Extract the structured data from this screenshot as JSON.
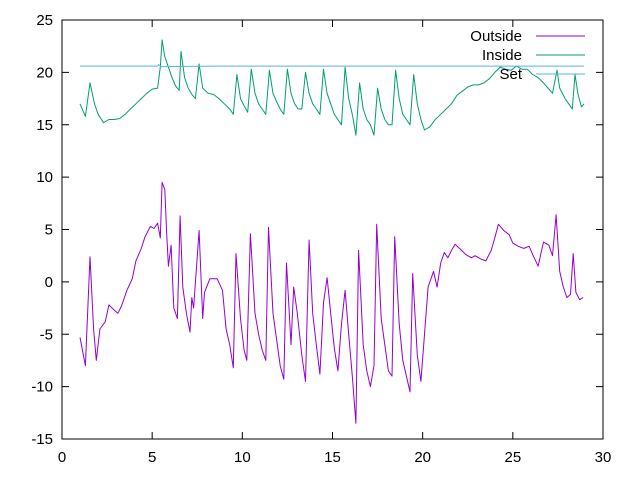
{
  "chart_data": {
    "type": "line",
    "title": "",
    "xlabel": "",
    "ylabel": "",
    "xlim": [
      0,
      30
    ],
    "ylim": [
      -15,
      25
    ],
    "xticks": [
      0,
      5,
      10,
      15,
      20,
      25,
      30
    ],
    "yticks": [
      -15,
      -10,
      -5,
      0,
      5,
      10,
      15,
      20,
      25
    ],
    "grid": false,
    "legend_position": "top-right",
    "series": [
      {
        "name": "Outside",
        "color": "#9400d3",
        "points": [
          [
            1.0,
            -5.3
          ],
          [
            1.3,
            -8.0
          ],
          [
            1.55,
            2.4
          ],
          [
            1.75,
            -4.5
          ],
          [
            1.9,
            -7.5
          ],
          [
            2.1,
            -4.5
          ],
          [
            2.4,
            -3.8
          ],
          [
            2.6,
            -2.2
          ],
          [
            2.9,
            -2.7
          ],
          [
            3.1,
            -3.0
          ],
          [
            3.3,
            -2.3
          ],
          [
            3.6,
            -0.8
          ],
          [
            3.9,
            0.3
          ],
          [
            4.1,
            2.0
          ],
          [
            4.4,
            3.2
          ],
          [
            4.6,
            4.3
          ],
          [
            4.9,
            5.3
          ],
          [
            5.1,
            5.1
          ],
          [
            5.3,
            5.6
          ],
          [
            5.45,
            4.2
          ],
          [
            5.55,
            9.5
          ],
          [
            5.7,
            8.8
          ],
          [
            5.8,
            4.8
          ],
          [
            5.9,
            1.5
          ],
          [
            6.05,
            3.5
          ],
          [
            6.2,
            -2.5
          ],
          [
            6.4,
            -3.5
          ],
          [
            6.55,
            6.3
          ],
          [
            6.7,
            -0.5
          ],
          [
            6.9,
            -3.0
          ],
          [
            7.1,
            -4.8
          ],
          [
            7.2,
            -1.5
          ],
          [
            7.3,
            -2.5
          ],
          [
            7.6,
            4.9
          ],
          [
            7.8,
            -3.5
          ],
          [
            7.9,
            -1.0
          ],
          [
            8.2,
            0.3
          ],
          [
            8.6,
            0.3
          ],
          [
            8.9,
            -0.8
          ],
          [
            9.1,
            -4.5
          ],
          [
            9.3,
            -6.0
          ],
          [
            9.5,
            -8.2
          ],
          [
            9.65,
            2.7
          ],
          [
            9.9,
            -3.5
          ],
          [
            10.1,
            -6.5
          ],
          [
            10.25,
            -7.5
          ],
          [
            10.45,
            4.6
          ],
          [
            10.7,
            -3.0
          ],
          [
            10.9,
            -5.0
          ],
          [
            11.1,
            -6.5
          ],
          [
            11.3,
            -7.5
          ],
          [
            11.45,
            5.2
          ],
          [
            11.7,
            -3.0
          ],
          [
            11.9,
            -5.5
          ],
          [
            12.1,
            -8.0
          ],
          [
            12.3,
            -9.3
          ],
          [
            12.45,
            1.8
          ],
          [
            12.7,
            -6.0
          ],
          [
            12.85,
            -0.5
          ],
          [
            13.05,
            -3.0
          ],
          [
            13.3,
            -7.0
          ],
          [
            13.5,
            -9.5
          ],
          [
            13.7,
            4.0
          ],
          [
            13.9,
            -3.0
          ],
          [
            14.1,
            -6.0
          ],
          [
            14.3,
            -8.8
          ],
          [
            14.5,
            -2.0
          ],
          [
            14.7,
            0.4
          ],
          [
            14.9,
            -3.0
          ],
          [
            15.1,
            -6.3
          ],
          [
            15.3,
            -8.5
          ],
          [
            15.5,
            -4.0
          ],
          [
            15.7,
            -0.8
          ],
          [
            15.9,
            -5.0
          ],
          [
            16.1,
            -9.0
          ],
          [
            16.3,
            -13.5
          ],
          [
            16.45,
            3.0
          ],
          [
            16.7,
            -6.0
          ],
          [
            16.9,
            -8.5
          ],
          [
            17.1,
            -10.0
          ],
          [
            17.3,
            -8.0
          ],
          [
            17.45,
            5.5
          ],
          [
            17.7,
            -3.5
          ],
          [
            17.9,
            -6.0
          ],
          [
            18.1,
            -8.5
          ],
          [
            18.3,
            -9.0
          ],
          [
            18.45,
            4.3
          ],
          [
            18.7,
            -4.0
          ],
          [
            18.9,
            -7.5
          ],
          [
            19.1,
            -9.0
          ],
          [
            19.3,
            -10.5
          ],
          [
            19.45,
            0.8
          ],
          [
            19.7,
            -7.0
          ],
          [
            19.9,
            -9.5
          ],
          [
            20.1,
            -5.0
          ],
          [
            20.3,
            -0.5
          ],
          [
            20.6,
            1.0
          ],
          [
            20.8,
            -0.5
          ],
          [
            21.0,
            1.8
          ],
          [
            21.2,
            2.8
          ],
          [
            21.4,
            2.3
          ],
          [
            21.6,
            3.0
          ],
          [
            21.8,
            3.6
          ],
          [
            22.1,
            3.1
          ],
          [
            22.4,
            2.6
          ],
          [
            22.7,
            2.3
          ],
          [
            22.9,
            2.5
          ],
          [
            23.2,
            2.2
          ],
          [
            23.5,
            2.0
          ],
          [
            23.8,
            3.0
          ],
          [
            24.0,
            4.2
          ],
          [
            24.2,
            5.5
          ],
          [
            24.5,
            4.9
          ],
          [
            24.8,
            4.5
          ],
          [
            25.0,
            3.7
          ],
          [
            25.3,
            3.4
          ],
          [
            25.6,
            3.2
          ],
          [
            25.9,
            3.4
          ],
          [
            26.1,
            2.6
          ],
          [
            26.4,
            1.5
          ],
          [
            26.7,
            3.8
          ],
          [
            27.0,
            3.5
          ],
          [
            27.2,
            2.5
          ],
          [
            27.4,
            6.4
          ],
          [
            27.6,
            1.0
          ],
          [
            27.8,
            -0.5
          ],
          [
            28.0,
            -1.5
          ],
          [
            28.2,
            -1.2
          ],
          [
            28.35,
            2.7
          ],
          [
            28.5,
            -1.0
          ],
          [
            28.7,
            -1.7
          ],
          [
            28.9,
            -1.5
          ]
        ]
      },
      {
        "name": "Inside",
        "color": "#009e73",
        "points": [
          [
            1.0,
            17.0
          ],
          [
            1.3,
            15.8
          ],
          [
            1.55,
            19.0
          ],
          [
            1.8,
            17.0
          ],
          [
            2.0,
            16.0
          ],
          [
            2.3,
            15.2
          ],
          [
            2.6,
            15.5
          ],
          [
            2.9,
            15.5
          ],
          [
            3.2,
            15.6
          ],
          [
            3.5,
            16.0
          ],
          [
            3.8,
            16.5
          ],
          [
            4.1,
            17.0
          ],
          [
            4.4,
            17.5
          ],
          [
            4.7,
            18.0
          ],
          [
            5.0,
            18.4
          ],
          [
            5.3,
            18.5
          ],
          [
            5.45,
            20.5
          ],
          [
            5.55,
            23.1
          ],
          [
            5.7,
            21.5
          ],
          [
            5.9,
            20.5
          ],
          [
            6.1,
            19.5
          ],
          [
            6.3,
            18.7
          ],
          [
            6.5,
            18.3
          ],
          [
            6.6,
            22.0
          ],
          [
            6.8,
            19.5
          ],
          [
            7.0,
            18.5
          ],
          [
            7.2,
            17.9
          ],
          [
            7.4,
            17.5
          ],
          [
            7.6,
            20.8
          ],
          [
            7.8,
            18.5
          ],
          [
            8.1,
            18.0
          ],
          [
            8.4,
            17.9
          ],
          [
            8.7,
            17.5
          ],
          [
            9.0,
            17.0
          ],
          [
            9.3,
            16.5
          ],
          [
            9.5,
            16.0
          ],
          [
            9.7,
            19.8
          ],
          [
            9.9,
            17.5
          ],
          [
            10.1,
            16.8
          ],
          [
            10.3,
            16.2
          ],
          [
            10.5,
            20.3
          ],
          [
            10.7,
            18.0
          ],
          [
            10.9,
            17.0
          ],
          [
            11.1,
            16.5
          ],
          [
            11.3,
            16.0
          ],
          [
            11.5,
            20.2
          ],
          [
            11.7,
            18.0
          ],
          [
            11.9,
            17.2
          ],
          [
            12.1,
            16.5
          ],
          [
            12.3,
            16.0
          ],
          [
            12.5,
            20.3
          ],
          [
            12.7,
            18.0
          ],
          [
            12.9,
            17.0
          ],
          [
            13.1,
            16.5
          ],
          [
            13.3,
            16.5
          ],
          [
            13.5,
            20.0
          ],
          [
            13.7,
            18.0
          ],
          [
            13.9,
            17.0
          ],
          [
            14.1,
            16.5
          ],
          [
            14.3,
            16.0
          ],
          [
            14.5,
            20.3
          ],
          [
            14.7,
            18.0
          ],
          [
            14.9,
            17.0
          ],
          [
            15.1,
            16.0
          ],
          [
            15.3,
            15.5
          ],
          [
            15.5,
            15.0
          ],
          [
            15.7,
            20.5
          ],
          [
            15.9,
            17.5
          ],
          [
            16.1,
            16.0
          ],
          [
            16.3,
            14.0
          ],
          [
            16.5,
            19.0
          ],
          [
            16.7,
            16.5
          ],
          [
            16.9,
            15.5
          ],
          [
            17.1,
            15.0
          ],
          [
            17.3,
            14.0
          ],
          [
            17.5,
            18.5
          ],
          [
            17.7,
            16.5
          ],
          [
            17.9,
            15.5
          ],
          [
            18.1,
            15.0
          ],
          [
            18.3,
            15.0
          ],
          [
            18.5,
            20.2
          ],
          [
            18.7,
            17.5
          ],
          [
            18.9,
            16.0
          ],
          [
            19.1,
            15.5
          ],
          [
            19.3,
            15.0
          ],
          [
            19.5,
            19.8
          ],
          [
            19.7,
            17.0
          ],
          [
            19.9,
            15.5
          ],
          [
            20.1,
            14.5
          ],
          [
            20.4,
            14.8
          ],
          [
            20.7,
            15.5
          ],
          [
            21.0,
            16.0
          ],
          [
            21.3,
            16.5
          ],
          [
            21.6,
            17.0
          ],
          [
            21.9,
            17.8
          ],
          [
            22.2,
            18.2
          ],
          [
            22.5,
            18.6
          ],
          [
            22.8,
            18.8
          ],
          [
            23.1,
            18.8
          ],
          [
            23.4,
            19.0
          ],
          [
            23.7,
            19.4
          ],
          [
            24.0,
            20.0
          ],
          [
            24.3,
            20.5
          ],
          [
            24.6,
            20.3
          ],
          [
            24.9,
            20.2
          ],
          [
            25.2,
            20.6
          ],
          [
            25.5,
            20.3
          ],
          [
            25.8,
            20.3
          ],
          [
            26.1,
            19.8
          ],
          [
            26.4,
            19.5
          ],
          [
            26.7,
            19.0
          ],
          [
            27.0,
            18.4
          ],
          [
            27.2,
            18.0
          ],
          [
            27.45,
            20.2
          ],
          [
            27.6,
            18.5
          ],
          [
            27.9,
            17.5
          ],
          [
            28.1,
            17.0
          ],
          [
            28.3,
            16.5
          ],
          [
            28.45,
            19.8
          ],
          [
            28.6,
            18.0
          ],
          [
            28.8,
            16.7
          ],
          [
            28.95,
            17.0
          ]
        ]
      },
      {
        "name": "Set",
        "color": "#56b4e9",
        "points": [
          [
            1.0,
            20.6
          ],
          [
            5.3,
            20.6
          ],
          [
            5.35,
            20.75
          ],
          [
            5.5,
            20.55
          ],
          [
            8.5,
            20.6
          ],
          [
            11.0,
            20.6
          ],
          [
            14.0,
            20.6
          ],
          [
            17.0,
            20.6
          ],
          [
            20.0,
            20.6
          ],
          [
            23.0,
            20.6
          ],
          [
            26.0,
            20.6
          ],
          [
            28.95,
            20.6
          ]
        ]
      }
    ]
  }
}
